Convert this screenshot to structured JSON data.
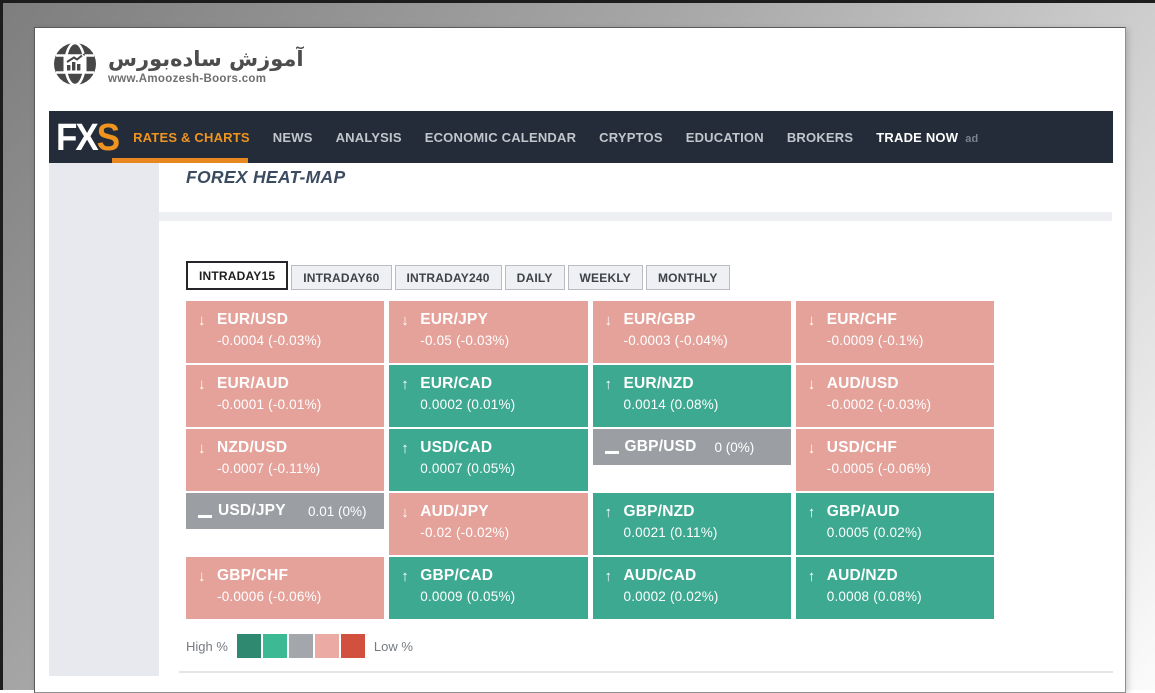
{
  "branding": {
    "site_name": "آموزش ساده‌بورس",
    "site_url": "www.Amoozesh-Boors.com",
    "brand_fx": "FX",
    "brand_s": "S"
  },
  "nav": {
    "items": [
      {
        "label": "RATES & CHARTS",
        "state": "active"
      },
      {
        "label": "NEWS",
        "state": "normal"
      },
      {
        "label": "ANALYSIS",
        "state": "normal"
      },
      {
        "label": "ECONOMIC CALENDAR",
        "state": "normal"
      },
      {
        "label": "CRYPTOS",
        "state": "normal"
      },
      {
        "label": "EDUCATION",
        "state": "normal"
      },
      {
        "label": "BROKERS",
        "state": "normal"
      },
      {
        "label": "TRADE NOW",
        "state": "emphasis"
      }
    ],
    "ad_tag": "ad"
  },
  "page_title": "FOREX HEAT-MAP",
  "tabs": [
    {
      "label": "INTRADAY15",
      "active": true
    },
    {
      "label": "INTRADAY60",
      "active": false
    },
    {
      "label": "INTRADAY240",
      "active": false
    },
    {
      "label": "DAILY",
      "active": false
    },
    {
      "label": "WEEKLY",
      "active": false
    },
    {
      "label": "MONTHLY",
      "active": false
    }
  ],
  "chart_data": {
    "type": "heatmap",
    "title": "FOREX HEAT-MAP",
    "period": "INTRADAY15",
    "rows": [
      [
        {
          "pair": "EUR/USD",
          "value": "-0.0004 (-0.03%)",
          "direction": "down",
          "tone": "negative"
        },
        {
          "pair": "EUR/JPY",
          "value": "-0.05 (-0.03%)",
          "direction": "down",
          "tone": "negative"
        },
        {
          "pair": "EUR/GBP",
          "value": "-0.0003 (-0.04%)",
          "direction": "down",
          "tone": "negative"
        },
        {
          "pair": "EUR/CHF",
          "value": "-0.0009 (-0.1%)",
          "direction": "down",
          "tone": "negative"
        }
      ],
      [
        {
          "pair": "EUR/AUD",
          "value": "-0.0001 (-0.01%)",
          "direction": "down",
          "tone": "negative"
        },
        {
          "pair": "EUR/CAD",
          "value": "0.0002 (0.01%)",
          "direction": "up",
          "tone": "positive"
        },
        {
          "pair": "EUR/NZD",
          "value": "0.0014 (0.08%)",
          "direction": "up",
          "tone": "positive"
        },
        {
          "pair": "AUD/USD",
          "value": "-0.0002 (-0.03%)",
          "direction": "down",
          "tone": "negative"
        }
      ],
      [
        {
          "pair": "NZD/USD",
          "value": "-0.0007 (-0.11%)",
          "direction": "down",
          "tone": "negative"
        },
        {
          "pair": "USD/CAD",
          "value": "0.0007 (0.05%)",
          "direction": "up",
          "tone": "positive"
        },
        {
          "pair": "GBP/USD",
          "value": "0 (0%)",
          "direction": "flat",
          "tone": "neutral"
        },
        {
          "pair": "USD/CHF",
          "value": "-0.0005 (-0.06%)",
          "direction": "down",
          "tone": "negative"
        }
      ],
      [
        {
          "pair": "USD/JPY",
          "value": "0.01 (0%)",
          "direction": "flat",
          "tone": "neutral"
        },
        {
          "pair": "AUD/JPY",
          "value": "-0.02 (-0.02%)",
          "direction": "down",
          "tone": "negative"
        },
        {
          "pair": "GBP/NZD",
          "value": "0.0021 (0.11%)",
          "direction": "up",
          "tone": "positive"
        },
        {
          "pair": "GBP/AUD",
          "value": "0.0005 (0.02%)",
          "direction": "up",
          "tone": "positive"
        }
      ],
      [
        {
          "pair": "GBP/CHF",
          "value": "-0.0006 (-0.06%)",
          "direction": "down",
          "tone": "negative"
        },
        {
          "pair": "GBP/CAD",
          "value": "0.0009 (0.05%)",
          "direction": "up",
          "tone": "positive"
        },
        {
          "pair": "AUD/CAD",
          "value": "0.0002 (0.02%)",
          "direction": "up",
          "tone": "positive"
        },
        {
          "pair": "AUD/NZD",
          "value": "0.0008 (0.08%)",
          "direction": "up",
          "tone": "positive"
        }
      ]
    ],
    "tone_colors": {
      "negative": "#e5a29b",
      "positive": "#3da990",
      "neutral": "#9b9fa4"
    }
  },
  "legend": {
    "high_label": "High %",
    "low_label": "Low %",
    "swatches": [
      "#2f8870",
      "#3db994",
      "#a3a7ac",
      "#ecaaa4",
      "#d1513e"
    ]
  }
}
